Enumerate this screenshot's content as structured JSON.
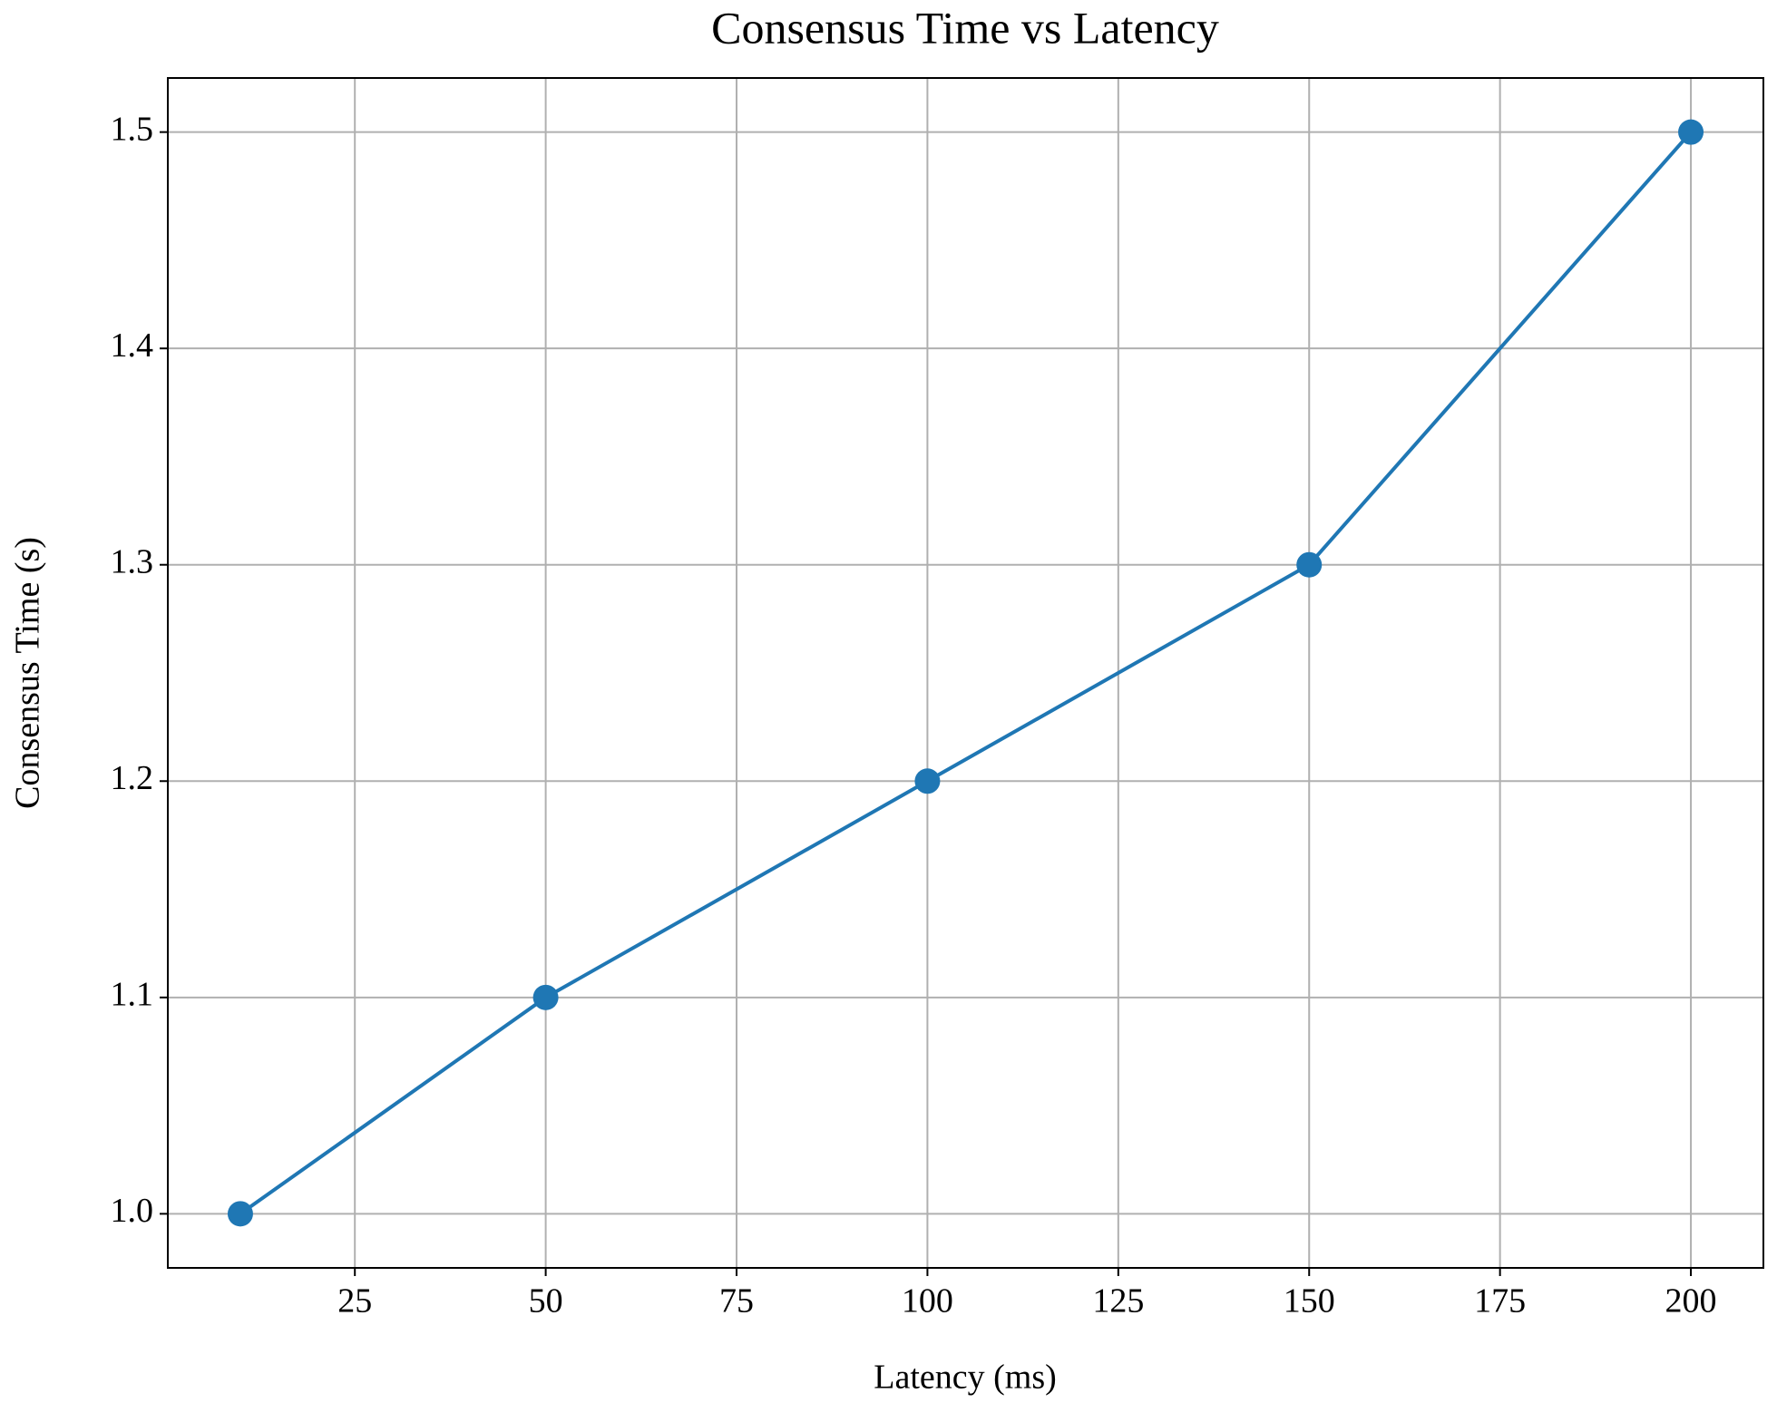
{
  "chart_data": {
    "type": "line",
    "title": "Consensus Time vs Latency",
    "x_label": "Latency (ms)",
    "y_label": "Consensus Time (s)",
    "x": [
      10,
      50,
      100,
      150,
      200
    ],
    "series": [
      {
        "color": "#1f77b4",
        "values": [
          1.0,
          1.1,
          1.2,
          1.3,
          1.5
        ]
      }
    ],
    "xlim": [
      0.5,
      209.5
    ],
    "ylim": [
      0.975,
      1.525
    ],
    "xticks": [
      25,
      50,
      75,
      100,
      125,
      150,
      175,
      200
    ],
    "yticks": [
      {
        "value": 1.0,
        "label": "1.0"
      },
      1.1,
      1.2,
      1.3,
      1.4,
      1.5
    ],
    "grid": true
  }
}
